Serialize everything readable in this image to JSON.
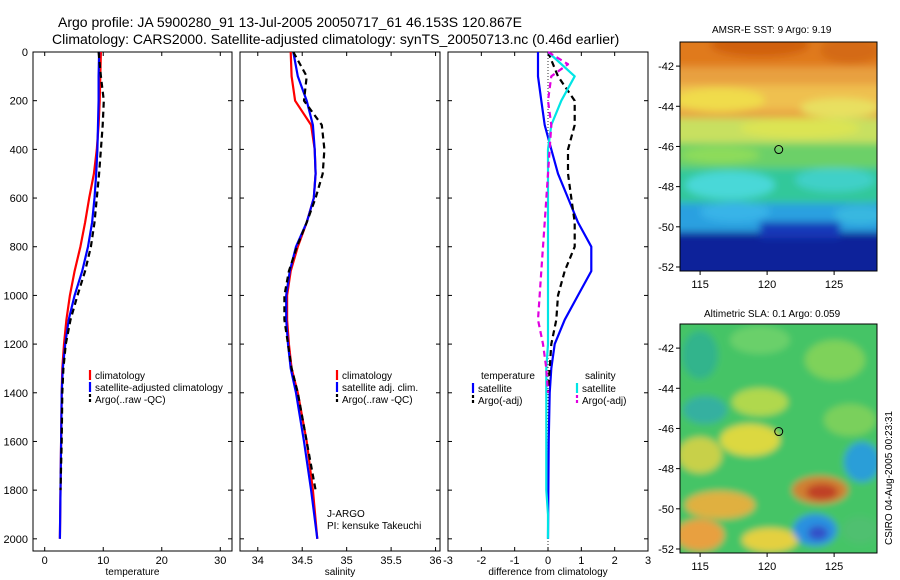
{
  "header": {
    "line1": "Argo profile: JA 5900280_91 13-Jul-2005 20050717_61 46.153S 120.867E",
    "line2": "Climatology: CARS2000. Satellite-adjusted climatology: synTS_20050713.nc (0.46d earlier)"
  },
  "side_text": "CSIRO 04-Aug-2005 00:23:31",
  "colors": {
    "red": "#ff0000",
    "blue": "#0000ff",
    "black": "#000000",
    "cyan": "#00e5e5",
    "magenta": "#e000e0"
  },
  "chart_data": [
    {
      "type": "line",
      "xlabel": "temperature",
      "ylabel": "",
      "xlim": [
        -2,
        32
      ],
      "ylim": [
        2050,
        0
      ],
      "xticks": [
        0,
        10,
        20,
        30
      ],
      "yticks": [
        0,
        200,
        400,
        600,
        800,
        1000,
        1200,
        1400,
        1600,
        1800,
        2000
      ],
      "legend": [
        "climatology",
        "satellite-adjusted climatology",
        "Argo(..raw -QC)"
      ],
      "series": [
        {
          "name": "climatology",
          "color": "red",
          "dash": false,
          "x": [
            9.6,
            9.5,
            9.4,
            9.2,
            8.9,
            8.4,
            7.6,
            6.9,
            6.1,
            5.1,
            4.3,
            3.7,
            3.3,
            3.0,
            2.9,
            2.8,
            2.7,
            2.6
          ],
          "y": [
            0,
            100,
            200,
            300,
            400,
            500,
            600,
            700,
            800,
            900,
            1000,
            1100,
            1200,
            1300,
            1400,
            1600,
            1800,
            2000
          ]
        },
        {
          "name": "satellite-adjusted climatology",
          "color": "blue",
          "dash": false,
          "x": [
            9.3,
            9.2,
            9.2,
            9.1,
            9.0,
            8.8,
            8.5,
            8.1,
            7.4,
            6.4,
            5.1,
            4.1,
            3.5,
            3.1,
            2.9,
            2.8,
            2.7,
            2.6
          ],
          "y": [
            0,
            100,
            200,
            300,
            400,
            500,
            600,
            700,
            800,
            900,
            1000,
            1100,
            1200,
            1300,
            1400,
            1600,
            1800,
            2000
          ]
        },
        {
          "name": "Argo(..raw -QC)",
          "color": "black",
          "dash": true,
          "x": [
            9.2,
            9.6,
            10.1,
            9.9,
            9.6,
            9.3,
            8.9,
            8.5,
            7.9,
            6.9,
            5.6,
            4.4,
            3.6,
            3.2,
            3.0,
            2.9,
            2.7
          ],
          "y": [
            0,
            100,
            200,
            300,
            400,
            500,
            600,
            700,
            800,
            900,
            1000,
            1100,
            1200,
            1300,
            1400,
            1600,
            1800
          ]
        }
      ]
    },
    {
      "type": "line",
      "xlabel": "salinity",
      "ylabel": "",
      "xlim": [
        33.8,
        36.05
      ],
      "ylim": [
        2050,
        0
      ],
      "xticks": [
        34,
        34.5,
        35,
        35.5,
        36
      ],
      "yticks": [
        0,
        200,
        400,
        600,
        800,
        1000,
        1200,
        1400,
        1600,
        1800,
        2000
      ],
      "legend": [
        "climatology",
        "satellite adj. clim.",
        "Argo(..raw -QC)"
      ],
      "annotation": [
        "J-ARGO",
        "PI: kensuke Takeuchi"
      ],
      "series": [
        {
          "name": "climatology",
          "color": "red",
          "dash": false,
          "x": [
            34.37,
            34.38,
            34.42,
            34.6,
            34.64,
            34.65,
            34.63,
            34.55,
            34.45,
            34.37,
            34.33,
            34.33,
            34.35,
            34.38,
            34.45,
            34.55,
            34.62,
            34.67
          ],
          "y": [
            0,
            100,
            200,
            300,
            400,
            500,
            600,
            700,
            800,
            900,
            1000,
            1100,
            1200,
            1300,
            1400,
            1600,
            1800,
            2000
          ]
        },
        {
          "name": "satellite adj. clim.",
          "color": "blue",
          "dash": false,
          "x": [
            34.4,
            34.45,
            34.55,
            34.62,
            34.64,
            34.65,
            34.63,
            34.55,
            34.43,
            34.36,
            34.32,
            34.32,
            34.34,
            34.37,
            34.43,
            34.52,
            34.6,
            34.67
          ],
          "y": [
            0,
            100,
            200,
            300,
            400,
            500,
            600,
            700,
            800,
            900,
            1000,
            1100,
            1200,
            1300,
            1400,
            1600,
            1800,
            2000
          ]
        },
        {
          "name": "Argo(..raw -QC)",
          "color": "black",
          "dash": true,
          "x": [
            34.4,
            34.55,
            34.52,
            34.72,
            34.75,
            34.73,
            34.65,
            34.55,
            34.44,
            34.35,
            34.3,
            34.3,
            34.34,
            34.38,
            34.45,
            34.55,
            34.65
          ],
          "y": [
            0,
            100,
            200,
            300,
            400,
            500,
            600,
            700,
            800,
            900,
            1000,
            1100,
            1200,
            1300,
            1400,
            1600,
            1800
          ]
        }
      ]
    },
    {
      "type": "line",
      "xlabel": "difference from climatology",
      "ylabel": "",
      "xlim": [
        -3,
        3
      ],
      "ylim": [
        2050,
        0
      ],
      "xticks": [
        -3,
        -2,
        -1,
        0,
        1,
        2,
        3
      ],
      "yticks": [
        0,
        200,
        400,
        600,
        800,
        1000,
        1200,
        1400,
        1600,
        1800,
        2000
      ],
      "legend_left": [
        "temperature",
        "satellite",
        "Argo(-adj)"
      ],
      "legend_right": [
        "salinity",
        "satellite",
        "Argo(-adj)"
      ],
      "series": [
        {
          "name": "temperature satellite",
          "color": "blue",
          "dash": false,
          "x": [
            -0.3,
            -0.3,
            -0.2,
            -0.1,
            0.1,
            0.3,
            0.6,
            0.9,
            1.3,
            1.3,
            0.9,
            0.5,
            0.2,
            0.1,
            0.05,
            0.02,
            0.0
          ],
          "y": [
            0,
            100,
            200,
            300,
            400,
            500,
            600,
            700,
            800,
            900,
            1000,
            1100,
            1200,
            1300,
            1400,
            1600,
            2000
          ]
        },
        {
          "name": "temperature Argo(-adj)",
          "color": "black",
          "dash": true,
          "x": [
            0,
            0.3,
            0.8,
            0.8,
            0.6,
            0.6,
            0.7,
            0.8,
            0.8,
            0.5,
            0.3,
            0.25,
            0.1,
            0.05,
            0.0
          ],
          "y": [
            0,
            100,
            200,
            300,
            400,
            500,
            600,
            700,
            800,
            900,
            1000,
            1100,
            1200,
            1300,
            1400
          ]
        },
        {
          "name": "salinity satellite",
          "color": "cyan",
          "dash": false,
          "x": [
            0.0,
            0.8,
            0.4,
            0.1,
            0.0,
            0.0,
            0.0,
            0.0,
            0.0,
            -0.05,
            -0.05,
            -0.05,
            -0.05,
            0.0,
            0.0
          ],
          "y": [
            0,
            100,
            200,
            300,
            400,
            600,
            800,
            1000,
            1200,
            1300,
            1400,
            1600,
            1800,
            1900,
            2000
          ]
        },
        {
          "name": "salinity Argo(-adj)",
          "color": "magenta",
          "dash": true,
          "x": [
            0.0,
            0.6,
            0.1,
            0.0,
            0.1,
            0.0,
            -0.1,
            -0.2,
            -0.3,
            -0.15,
            -0.05,
            0.0
          ],
          "y": [
            0,
            50,
            100,
            200,
            300,
            500,
            700,
            900,
            1100,
            1200,
            1300,
            1400
          ]
        }
      ]
    },
    {
      "type": "heatmap",
      "title": "AMSR-E SST: 9 Argo: 9.19",
      "xlim": [
        113.5,
        128.2
      ],
      "ylim": [
        -52.2,
        -40.8
      ],
      "xticks": [
        115,
        120,
        125
      ],
      "yticks": [
        -42,
        -44,
        -46,
        -48,
        -50,
        -52
      ],
      "profile_location": {
        "lon": 120.867,
        "lat": -46.153
      }
    },
    {
      "type": "heatmap",
      "title": "Altimetric SLA: 0.1 Argo: 0.059",
      "xlim": [
        113.5,
        128.2
      ],
      "ylim": [
        -52.2,
        -40.8
      ],
      "xticks": [
        115,
        120,
        125
      ],
      "yticks": [
        -42,
        -44,
        -46,
        -48,
        -50,
        -52
      ],
      "profile_location": {
        "lon": 120.867,
        "lat": -46.153
      }
    }
  ]
}
